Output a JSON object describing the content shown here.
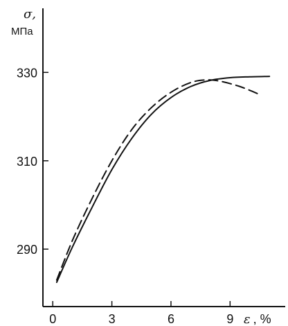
{
  "chart_data": {
    "type": "line",
    "x_axis": {
      "label_symbol": "ε",
      "label_unit": ", %",
      "ticks": [
        0,
        3,
        6,
        9
      ],
      "tick_labels": [
        "0",
        "3",
        "6",
        "9"
      ],
      "range": [
        -0.5,
        11.8
      ]
    },
    "y_axis": {
      "label_symbol": "σ,",
      "label_unit": "МПа",
      "ticks": [
        290,
        310,
        330
      ],
      "tick_labels": [
        "290",
        "310",
        "330"
      ],
      "range": [
        277,
        344.5
      ]
    },
    "grid": false,
    "series": [
      {
        "style": "solid",
        "color": "#111111",
        "points": [
          [
            0.2,
            282.5
          ],
          [
            1.0,
            290.5
          ],
          [
            2.0,
            299.5
          ],
          [
            3.0,
            308.0
          ],
          [
            4.0,
            315.0
          ],
          [
            5.0,
            320.5
          ],
          [
            6.0,
            324.3
          ],
          [
            7.0,
            326.8
          ],
          [
            8.0,
            328.2
          ],
          [
            9.0,
            328.8
          ],
          [
            10.0,
            329.0
          ],
          [
            11.0,
            329.1
          ]
        ]
      },
      {
        "style": "dashed",
        "color": "#111111",
        "points": [
          [
            0.2,
            283.0
          ],
          [
            1.0,
            292.0
          ],
          [
            2.0,
            301.5
          ],
          [
            3.0,
            310.0
          ],
          [
            4.0,
            317.0
          ],
          [
            5.0,
            322.0
          ],
          [
            6.0,
            325.5
          ],
          [
            7.0,
            327.7
          ],
          [
            7.8,
            328.3
          ],
          [
            8.5,
            328.0
          ],
          [
            9.5,
            326.8
          ],
          [
            10.5,
            325.0
          ]
        ]
      }
    ]
  }
}
